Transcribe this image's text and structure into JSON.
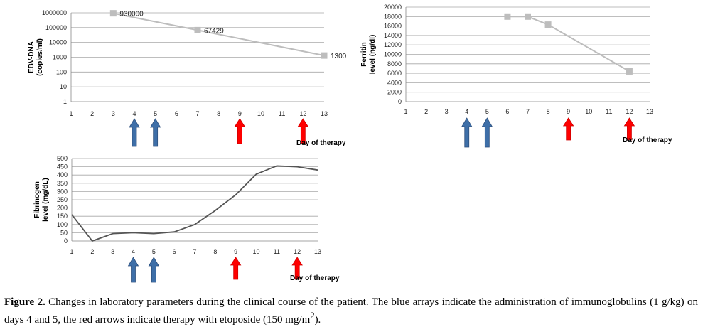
{
  "chart_data": [
    {
      "type": "line",
      "ylabel_lines": [
        "EBV-DNA",
        "(copies/ml)"
      ],
      "yscale": "log",
      "y_ticks": [
        "1",
        "10",
        "100",
        "1000",
        "10000",
        "100000",
        "1000000"
      ],
      "y_tick_values": [
        1,
        10,
        100,
        1000,
        10000,
        100000,
        1000000
      ],
      "ylim": [
        1,
        1000000
      ],
      "x_ticks": [
        "1",
        "2",
        "3",
        "4",
        "5",
        "6",
        "7",
        "8",
        "9",
        "10",
        "11",
        "12",
        "13"
      ],
      "xlim": [
        1,
        13
      ],
      "series": [
        {
          "points": [
            [
              3,
              930000
            ],
            [
              7,
              67429
            ],
            [
              13,
              1300
            ]
          ],
          "color": "#bdbdbd",
          "markers": true
        }
      ],
      "data_labels": [
        {
          "x": 3,
          "y": 930000,
          "text": "930000"
        },
        {
          "x": 7,
          "y": 67429,
          "text": "67429"
        },
        {
          "x": 13,
          "y": 1300,
          "text": "1300"
        }
      ],
      "arrows": [
        {
          "day": 4,
          "color": "#3e6fa8",
          "kind": "immunoglobulin"
        },
        {
          "day": 5,
          "color": "#3e6fa8",
          "kind": "immunoglobulin"
        },
        {
          "day": 9,
          "color": "#ff0000",
          "kind": "etoposide"
        },
        {
          "day": 12,
          "color": "#ff0000",
          "kind": "etoposide"
        }
      ],
      "annotation": "Day of therapy",
      "grid": true
    },
    {
      "type": "line",
      "ylabel_lines": [
        "Ferritin",
        "level (ng/dl)"
      ],
      "yscale": "linear",
      "y_ticks": [
        "0",
        "2000",
        "4000",
        "6000",
        "8000",
        "10000",
        "12000",
        "14000",
        "16000",
        "18000",
        "20000"
      ],
      "y_tick_values": [
        0,
        2000,
        4000,
        6000,
        8000,
        10000,
        12000,
        14000,
        16000,
        18000,
        20000
      ],
      "ylim": [
        0,
        20000
      ],
      "x_ticks": [
        "1",
        "2",
        "3",
        "4",
        "5",
        "6",
        "7",
        "8",
        "9",
        "10",
        "11",
        "12",
        "13"
      ],
      "xlim": [
        1,
        13
      ],
      "series": [
        {
          "points": [
            [
              6,
              18000
            ],
            [
              7,
              18000
            ],
            [
              8,
              16300
            ],
            [
              12,
              6400
            ]
          ],
          "color": "#bdbdbd",
          "markers": true
        }
      ],
      "arrows": [
        {
          "day": 4,
          "color": "#3e6fa8",
          "kind": "immunoglobulin"
        },
        {
          "day": 5,
          "color": "#3e6fa8",
          "kind": "immunoglobulin"
        },
        {
          "day": 9,
          "color": "#ff0000",
          "kind": "etoposide"
        },
        {
          "day": 12,
          "color": "#ff0000",
          "kind": "etoposide"
        }
      ],
      "annotation": "Day of therapy",
      "grid": true
    },
    {
      "type": "line",
      "ylabel_lines": [
        "Fibrinogen",
        "level (mg/dL)"
      ],
      "yscale": "linear",
      "y_ticks": [
        "0",
        "50",
        "100",
        "150",
        "200",
        "250",
        "300",
        "350",
        "400",
        "450",
        "500"
      ],
      "y_tick_values": [
        0,
        50,
        100,
        150,
        200,
        250,
        300,
        350,
        400,
        450,
        500
      ],
      "ylim": [
        0,
        500
      ],
      "x_ticks": [
        "1",
        "2",
        "3",
        "4",
        "5",
        "6",
        "7",
        "8",
        "9",
        "10",
        "11",
        "12",
        "13"
      ],
      "xlim": [
        1,
        13
      ],
      "series": [
        {
          "points": [
            [
              1,
              160
            ],
            [
              2,
              0
            ],
            [
              3,
              45
            ],
            [
              4,
              50
            ],
            [
              5,
              45
            ],
            [
              6,
              55
            ],
            [
              7,
              100
            ],
            [
              8,
              185
            ],
            [
              9,
              280
            ],
            [
              10,
              405
            ],
            [
              11,
              455
            ],
            [
              12,
              450
            ],
            [
              13,
              430
            ]
          ],
          "color": "#555555",
          "markers": false
        }
      ],
      "arrows": [
        {
          "day": 4,
          "color": "#3e6fa8",
          "kind": "immunoglobulin"
        },
        {
          "day": 5,
          "color": "#3e6fa8",
          "kind": "immunoglobulin"
        },
        {
          "day": 9,
          "color": "#ff0000",
          "kind": "etoposide"
        },
        {
          "day": 12,
          "color": "#ff0000",
          "kind": "etoposide"
        }
      ],
      "annotation": "Day of therapy",
      "grid": true
    }
  ],
  "caption": {
    "label": "Figure 2.",
    "text": " Changes in laboratory parameters during the clinical course of the patient. The blue arrays indicate the administration of immunoglobulins (1 g/kg) on days 4 and 5, the red arrows indicate therapy with etoposide (150 mg/m",
    "superscript": "2",
    "tail": ")."
  }
}
